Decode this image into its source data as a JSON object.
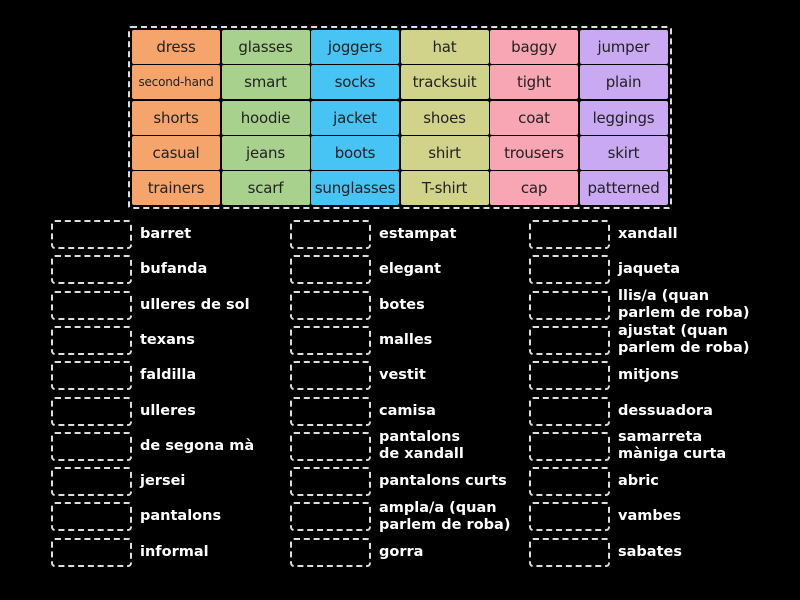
{
  "tiles": {
    "column_colors": [
      "#f5a56c",
      "#a9d18e",
      "#47c3f4",
      "#d2d38b",
      "#f8a5b4",
      "#c9a9f2"
    ],
    "rows": [
      [
        "dress",
        "glasses",
        "joggers",
        "hat",
        "baggy",
        "jumper"
      ],
      [
        "second-hand",
        "smart",
        "socks",
        "tracksuit",
        "tight",
        "plain"
      ],
      [
        "shorts",
        "hoodie",
        "jacket",
        "shoes",
        "coat",
        "leggings"
      ],
      [
        "casual",
        "jeans",
        "boots",
        "shirt",
        "trousers",
        "skirt"
      ],
      [
        "trainers",
        "scarf",
        "sunglasses",
        "T-shirt",
        "cap",
        "patterned"
      ]
    ]
  },
  "targets": [
    [
      "barret",
      "bufanda",
      "ulleres de sol",
      "texans",
      "faldilla",
      "ulleres",
      "de segona mà",
      "jersei",
      "pantalons",
      "informal"
    ],
    [
      "estampat",
      "elegant",
      "botes",
      "malles",
      "vestit",
      "camisa",
      "pantalons\nde xandall",
      "pantalons curts",
      "ampla/a (quan\nparlem de roba)",
      "gorra"
    ],
    [
      "xandall",
      "jaqueta",
      "llis/a (quan\nparlem de roba)",
      "ajustat (quan\nparlem de roba)",
      "mitjons",
      "dessuadora",
      "samarreta\nmàniga curta",
      "abric",
      "vambes",
      "sabates"
    ]
  ]
}
